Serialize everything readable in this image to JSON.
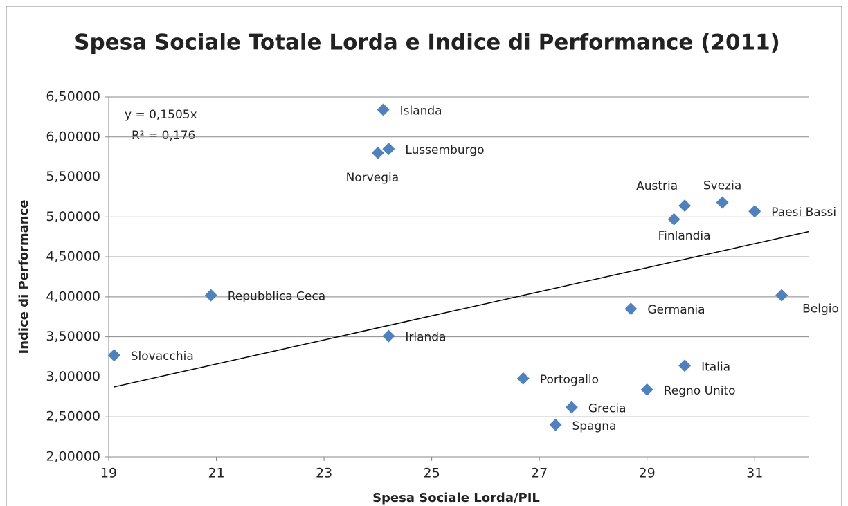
{
  "chart_data": {
    "type": "scatter",
    "title": "Spesa Sociale Totale Lorda e Indice di Performance (2011)",
    "x_label": "Spesa Sociale Lorda/PIL",
    "y_label": "Indice di Performance",
    "color": "#4f81bd",
    "grid": true,
    "xlim": [
      19,
      32
    ],
    "xticks": [
      19,
      21,
      23,
      25,
      27,
      29,
      31
    ],
    "ylim": [
      2,
      6.5
    ],
    "yticks": [
      {
        "value": 2,
        "label": "2,00000"
      },
      {
        "value": 2.5,
        "label": "2,50000"
      },
      {
        "value": 3,
        "label": "3,00000"
      },
      {
        "value": 3.5,
        "label": "3,50000"
      },
      {
        "value": 4,
        "label": "4,00000"
      },
      {
        "value": 4.5,
        "label": "4,50000"
      },
      {
        "value": 5,
        "label": "5,00000"
      },
      {
        "value": 5.5,
        "label": "5,50000"
      },
      {
        "value": 6,
        "label": "6,00000"
      },
      {
        "value": 6.5,
        "label": "6,50000"
      }
    ],
    "points": [
      {
        "label": "Islanda",
        "x": 24.1,
        "y": 6.34
      },
      {
        "label": "Lussemburgo",
        "x": 24.2,
        "y": 5.85
      },
      {
        "label": "Norvegia",
        "x": 24.0,
        "y": 5.8
      },
      {
        "label": "Austria",
        "x": 29.7,
        "y": 5.14
      },
      {
        "label": "Svezia",
        "x": 30.4,
        "y": 5.18
      },
      {
        "label": "Paesi Bassi",
        "x": 31.0,
        "y": 5.07
      },
      {
        "label": "Finlandia",
        "x": 29.5,
        "y": 4.97
      },
      {
        "label": "Repubblica Ceca",
        "x": 20.9,
        "y": 4.02
      },
      {
        "label": "Germania",
        "x": 28.7,
        "y": 3.85
      },
      {
        "label": "Belgio",
        "x": 31.5,
        "y": 4.02
      },
      {
        "label": "Irlanda",
        "x": 24.2,
        "y": 3.51
      },
      {
        "label": "Slovacchia",
        "x": 19.1,
        "y": 3.27
      },
      {
        "label": "Italia",
        "x": 29.7,
        "y": 3.14
      },
      {
        "label": "Portogallo",
        "x": 26.7,
        "y": 2.98
      },
      {
        "label": "Regno Unito",
        "x": 29.0,
        "y": 2.84
      },
      {
        "label": "Grecia",
        "x": 27.6,
        "y": 2.62
      },
      {
        "label": "Spagna",
        "x": 27.3,
        "y": 2.4
      }
    ],
    "trendline": {
      "slope": 0.1505,
      "label": "y = 0,1505x",
      "r2_label": "R² = 0,176"
    }
  }
}
